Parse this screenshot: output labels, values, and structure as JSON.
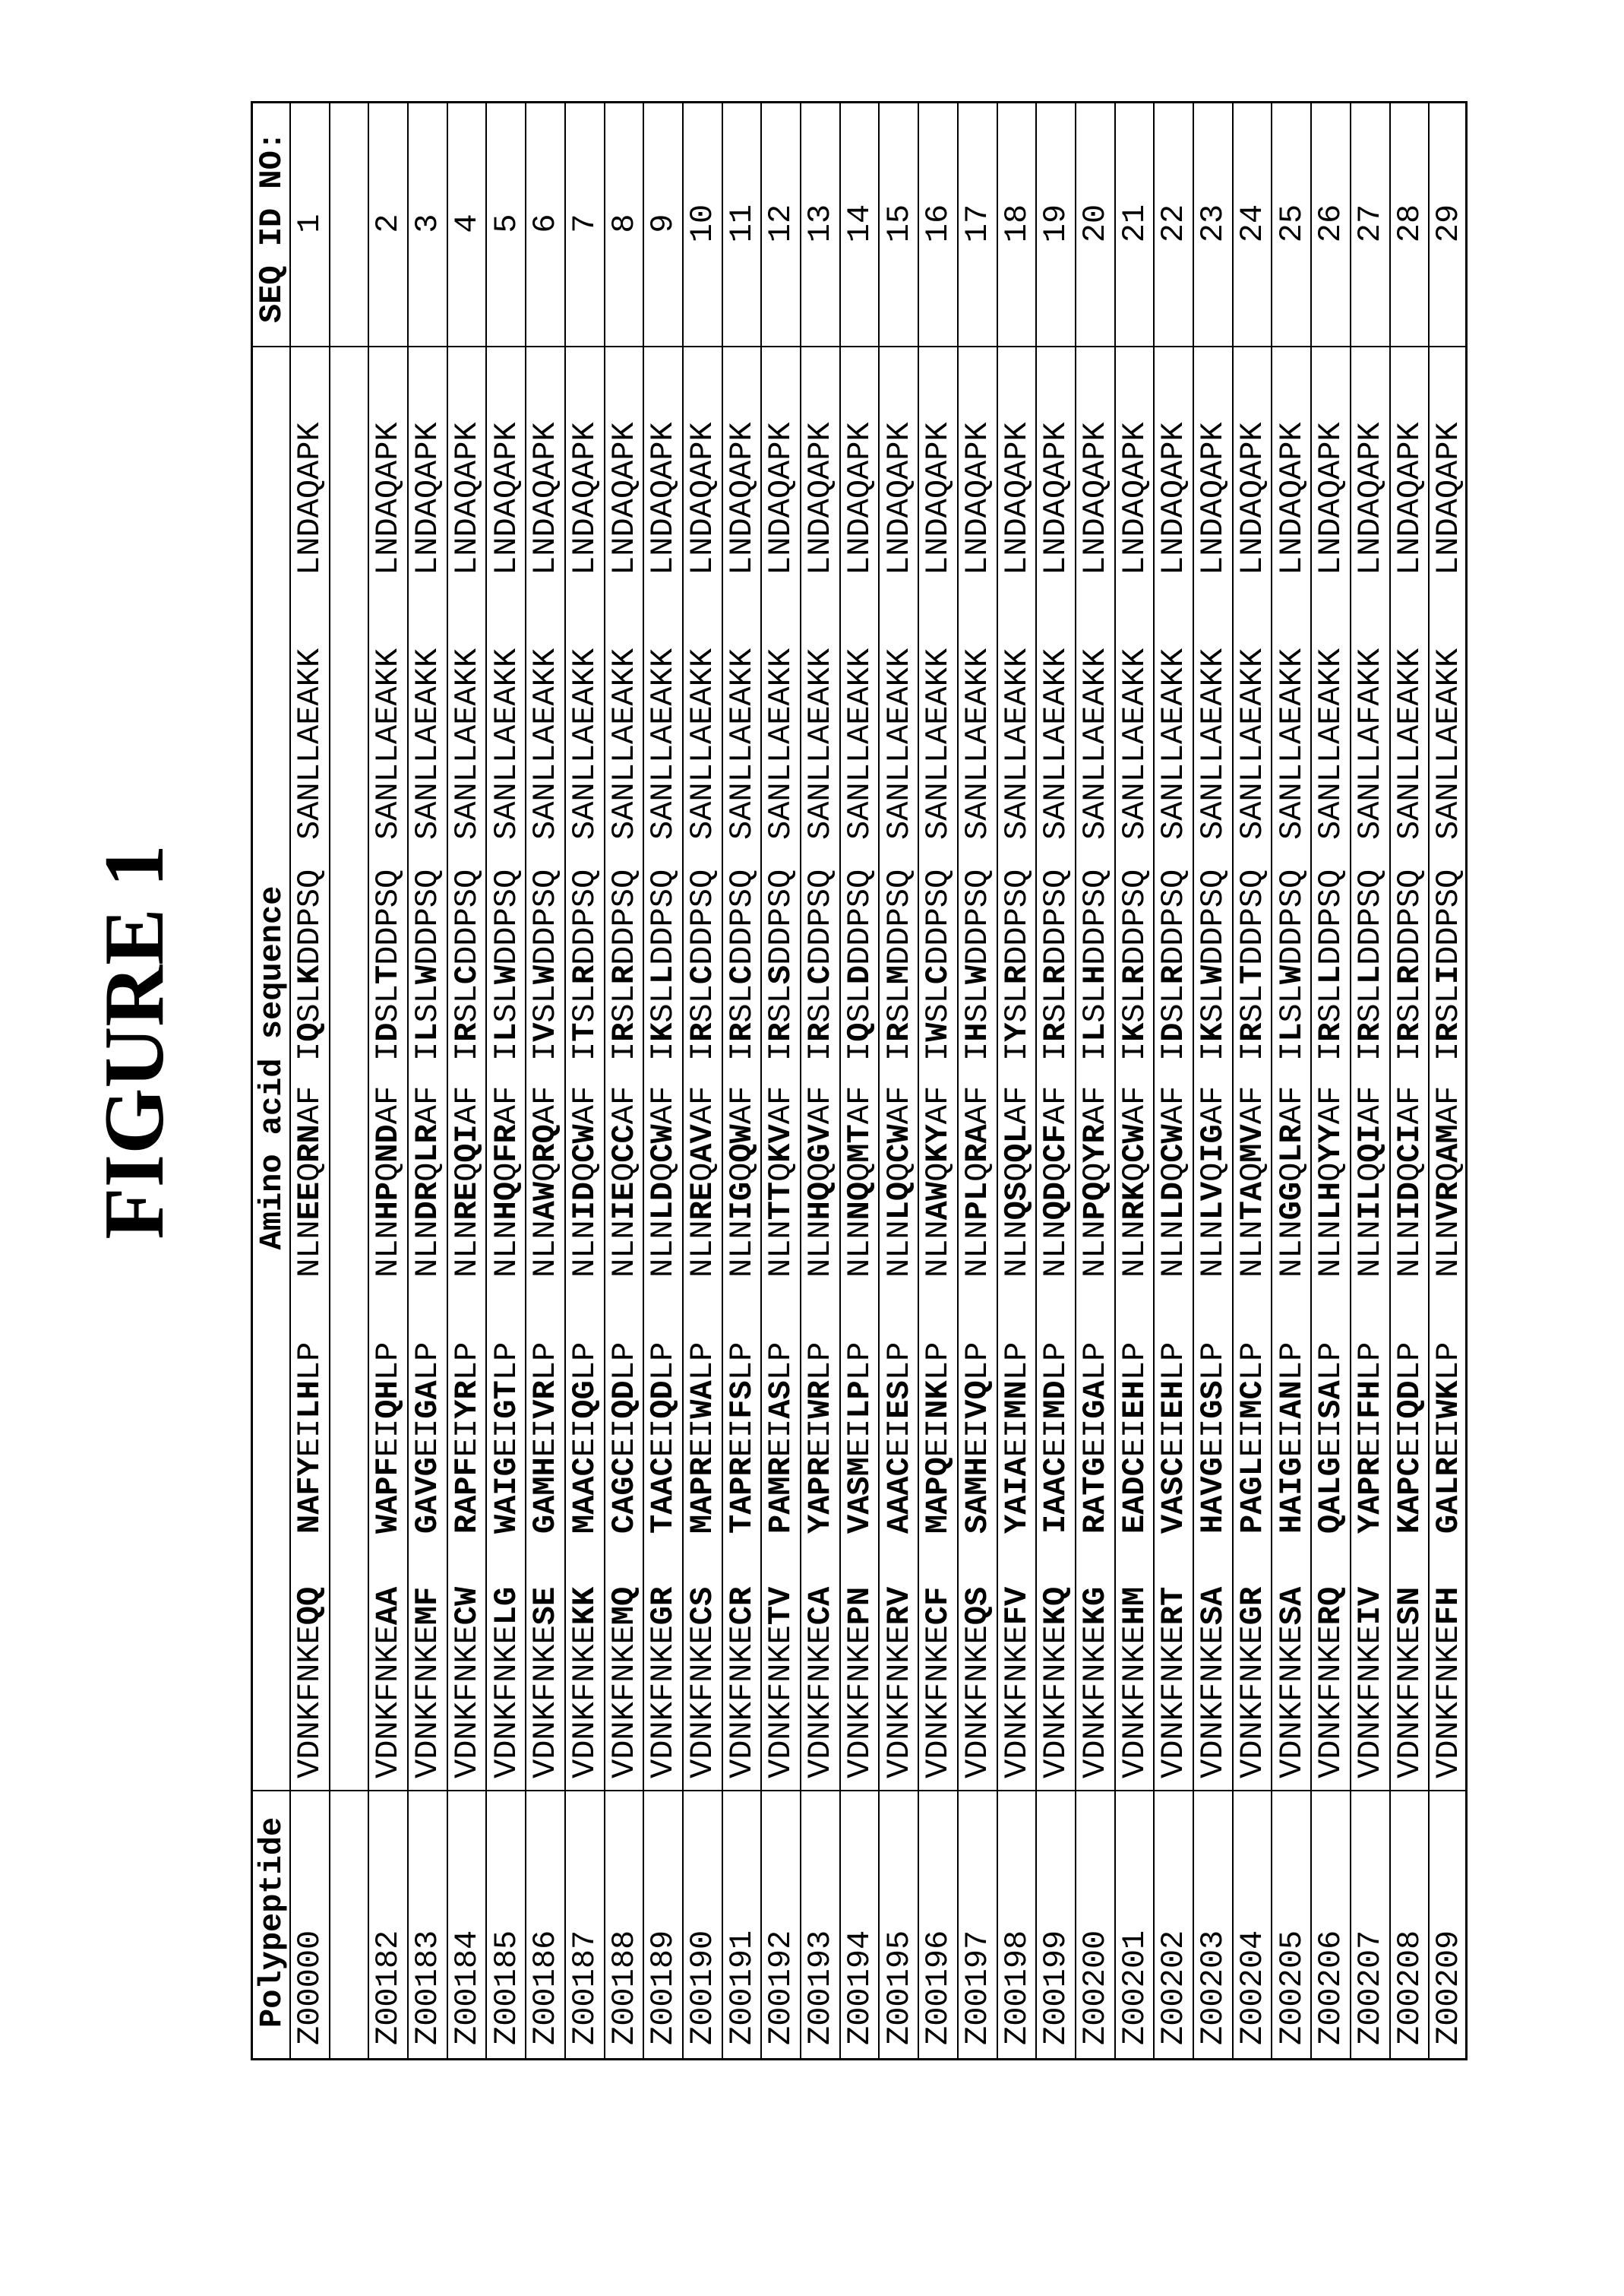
{
  "figure_title": "FIGURE 1",
  "table": {
    "headers": {
      "polypeptide": "Polypeptide",
      "sequence": "Amino acid sequence",
      "seq_id": "SEQ ID NO:"
    },
    "rows": [
      {
        "id": "Z00000",
        "seq": [
          "VDNKFNKEQQ",
          "NAFYEILHLP",
          "NLNEEQRNAF",
          "IQSLKDDPSQ",
          "SANLLAEAKK",
          "LNDAQAPK"
        ],
        "seq_id": "1"
      },
      {
        "id": "",
        "seq": [
          "",
          "",
          "",
          "",
          "",
          ""
        ],
        "seq_id": ""
      },
      {
        "id": "Z00182",
        "seq": [
          "VDNKFNKEAA",
          "WAPFEIQHLP",
          "NLNHPQNDAF",
          "IDSLTDDPSQ",
          "SANLLAEAKK",
          "LNDAQAPK"
        ],
        "seq_id": "2"
      },
      {
        "id": "Z00183",
        "seq": [
          "VDNKFNKEMF",
          "GAVGEIGALP",
          "NLNDRQLRAF",
          "ILSLWDDPSQ",
          "SANLLAEAKK",
          "LNDAQAPK"
        ],
        "seq_id": "3"
      },
      {
        "id": "Z00184",
        "seq": [
          "VDNKFNKECW",
          "RAPFEIYRLP",
          "NLNREQQIAF",
          "IRSLCDDPSQ",
          "SANLLAEAKK",
          "LNDAQAPK"
        ],
        "seq_id": "4"
      },
      {
        "id": "Z00185",
        "seq": [
          "VDNKFNKELG",
          "WAIGEIGTLP",
          "NLNHQQFRAF",
          "ILSLWDDPSQ",
          "SANLLAEAKK",
          "LNDAQAPK"
        ],
        "seq_id": "5"
      },
      {
        "id": "Z00186",
        "seq": [
          "VDNKFNKESE",
          "GAMHEIVRLP",
          "NLNAWQRQAF",
          "IVSLWDDPSQ",
          "SANLLAEAKK",
          "LNDAQAPK"
        ],
        "seq_id": "6"
      },
      {
        "id": "Z00187",
        "seq": [
          "VDNKFNKEKK",
          "MAACEIQGLP",
          "NLNIDQCWAF",
          "ITSLRDDPSQ",
          "SANLLAEAKK",
          "LNDAQAPK"
        ],
        "seq_id": "7"
      },
      {
        "id": "Z00188",
        "seq": [
          "VDNKFNKEMQ",
          "CAGCEIQDLP",
          "NLNIEQCCAF",
          "IRSLRDDPSQ",
          "SANLLAEAKK",
          "LNDAQAPK"
        ],
        "seq_id": "8"
      },
      {
        "id": "Z00189",
        "seq": [
          "VDNKFNKEGR",
          "TAACEIQDLP",
          "NLNLDQCWAF",
          "IKSLLDDPSQ",
          "SANLLAEAKK",
          "LNDAQAPK"
        ],
        "seq_id": "9"
      },
      {
        "id": "Z00190",
        "seq": [
          "VDNKFNKECS",
          "MAPREIWALP",
          "NLNREQAVAF",
          "IRSLCDDPSQ",
          "SANLLAEAKK",
          "LNDAQAPK"
        ],
        "seq_id": "10"
      },
      {
        "id": "Z00191",
        "seq": [
          "VDNKFNKECR",
          "TAPREIFSLP",
          "NLNIGQQWAF",
          "IRSLCDDPSQ",
          "SANLLAEAKK",
          "LNDAQAPK"
        ],
        "seq_id": "11"
      },
      {
        "id": "Z00192",
        "seq": [
          "VDNKFNKETV",
          "PAMREIASLP",
          "NLNTTQKVAF",
          "IRSLSDDPSQ",
          "SANLLAEAKK",
          "LNDAQAPK"
        ],
        "seq_id": "12"
      },
      {
        "id": "Z00193",
        "seq": [
          "VDNKFNKECA",
          "YAPREIWRLP",
          "NLNHQQGVAF",
          "IRSLCDDPSQ",
          "SANLLAEAKK",
          "LNDAQAPK"
        ],
        "seq_id": "13"
      },
      {
        "id": "Z00194",
        "seq": [
          "VDNKFNKEPN",
          "VASMEILPLP",
          "NLNNQQMTAF",
          "IQSLDDDPSQ",
          "SANLLAEAKK",
          "LNDAQAPK"
        ],
        "seq_id": "14"
      },
      {
        "id": "Z00195",
        "seq": [
          "VDNKFNKERV",
          "AAACEIESLP",
          "NLNLQQCWAF",
          "IRSLMDDPSQ",
          "SANLLAEAKK",
          "LNDAQAPK"
        ],
        "seq_id": "15"
      },
      {
        "id": "Z00196",
        "seq": [
          "VDNKFNKECF",
          "MAPQEINKLP",
          "NLNAWQKYAF",
          "IWSLCDDPSQ",
          "SANLLAEAKK",
          "LNDAQAPK"
        ],
        "seq_id": "16"
      },
      {
        "id": "Z00197",
        "seq": [
          "VDNKFNKEQS",
          "SAMHEIVQLP",
          "NLNPLQRAAF",
          "IHSLWDDPSQ",
          "SANLLAEAKK",
          "LNDAQAPK"
        ],
        "seq_id": "17"
      },
      {
        "id": "Z00198",
        "seq": [
          "VDNKFNKEFV",
          "YAIAEIMNLP",
          "NLNQSQQLAF",
          "IYSLRDDPSQ",
          "SANLLAEAKK",
          "LNDAQAPK"
        ],
        "seq_id": "18"
      },
      {
        "id": "Z00199",
        "seq": [
          "VDNKFNKEKQ",
          "IAACEIMDLP",
          "NLNQDQCFAF",
          "IRSLRDDPSQ",
          "SANLLAEAKK",
          "LNDAQAPK"
        ],
        "seq_id": "19"
      },
      {
        "id": "Z00200",
        "seq": [
          "VDNKFNKEKG",
          "RATGEIGALP",
          "NLNPQQYRAF",
          "ILSLHDDPSQ",
          "SANLLAEAKK",
          "LNDAQAPK"
        ],
        "seq_id": "20"
      },
      {
        "id": "Z00201",
        "seq": [
          "VDNKFNKEHM",
          "EADCEIEHLP",
          "NLNRKQCWAF",
          "IKSLRDDPSQ",
          "SANLLAEAKK",
          "LNDAQAPK"
        ],
        "seq_id": "21"
      },
      {
        "id": "Z00202",
        "seq": [
          "VDNKFNKERT",
          "VASCEIEHLP",
          "NLNLDQCWAF",
          "IDSLRDDPSQ",
          "SANLLAEAKK",
          "LNDAQAPK"
        ],
        "seq_id": "22"
      },
      {
        "id": "Z00203",
        "seq": [
          "VDNKFNKESA",
          "HAVGEIGSLP",
          "NLNLVQIGAF",
          "IKSLWDDPSQ",
          "SANLLAEAKK",
          "LNDAQAPK"
        ],
        "seq_id": "23"
      },
      {
        "id": "Z00204",
        "seq": [
          "VDNKFNKEGR",
          "PAGLEIMCLP",
          "NLNTAQMVAF",
          "IRSLTDDPSQ",
          "SANLLAEAKK",
          "LNDAQAPK"
        ],
        "seq_id": "24"
      },
      {
        "id": "Z00205",
        "seq": [
          "VDNKFNKESA",
          "HAIGEIANLP",
          "NLNGGQLRAF",
          "ILSLWDDPSQ",
          "SANLLAEAKK",
          "LNDAQAPK"
        ],
        "seq_id": "25"
      },
      {
        "id": "Z00206",
        "seq": [
          "VDNKFNKERQ",
          "QALGEISALP",
          "NLNLHQYYAF",
          "IRSLLDDPSQ",
          "SANLLAEAKK",
          "LNDAQAPK"
        ],
        "seq_id": "26"
      },
      {
        "id": "Z00207",
        "seq": [
          "VDNKFNKEIV",
          "YAPREIFHLP",
          "NLNILQQIAF",
          "IRSLLDDPSQ",
          "SANLLAFAKK",
          "LNDAQAPK"
        ],
        "seq_id": "27"
      },
      {
        "id": "Z00208",
        "seq": [
          "VDNKFNKESN",
          "KAPCEIQDLP",
          "NLNIDQCIAF",
          "IRSLRDDPSQ",
          "SANLLAEAKK",
          "LNDAQAPK"
        ],
        "seq_id": "28"
      },
      {
        "id": "Z00209",
        "seq": [
          "VDNKFNKEFH",
          "GALREIWKLP",
          "NLNVRQAMAF",
          "IRSLIDDPSQ",
          "SANLLAEAKK",
          "LNDAQAPK"
        ],
        "seq_id": "29"
      }
    ]
  }
}
